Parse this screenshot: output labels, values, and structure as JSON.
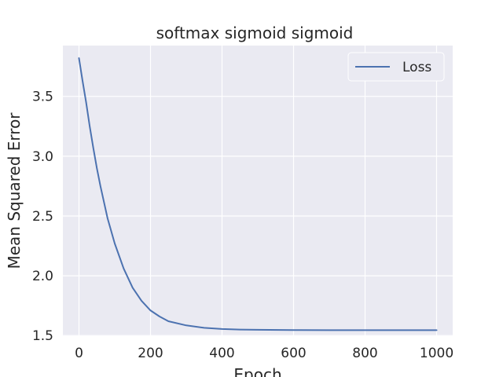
{
  "chart_data": {
    "type": "line",
    "title": "softmax sigmoid sigmoid",
    "xlabel": "Epoch",
    "ylabel": "Mean Squared Error",
    "xlim": [
      -45,
      1045
    ],
    "ylim": [
      1.495,
      3.925
    ],
    "xticks": [
      0,
      200,
      400,
      600,
      800,
      1000
    ],
    "yticks": [
      1.5,
      2.0,
      2.5,
      3.0,
      3.5
    ],
    "xtick_labels": [
      "0",
      "200",
      "400",
      "600",
      "800",
      "1000"
    ],
    "ytick_labels": [
      "1.5",
      "2.0",
      "2.5",
      "3.0",
      "3.5"
    ],
    "grid": true,
    "legend_position": "top-right",
    "series": [
      {
        "name": "Loss",
        "color": "#4c72b0",
        "x": [
          0,
          10,
          20,
          30,
          40,
          50,
          60,
          80,
          100,
          125,
          150,
          175,
          200,
          225,
          250,
          300,
          350,
          400,
          450,
          500,
          600,
          700,
          800,
          900,
          1000
        ],
        "y": [
          3.82,
          3.63,
          3.45,
          3.25,
          3.07,
          2.9,
          2.75,
          2.48,
          2.27,
          2.06,
          1.9,
          1.79,
          1.71,
          1.66,
          1.62,
          1.585,
          1.565,
          1.555,
          1.55,
          1.548,
          1.546,
          1.545,
          1.545,
          1.545,
          1.545
        ]
      }
    ]
  }
}
